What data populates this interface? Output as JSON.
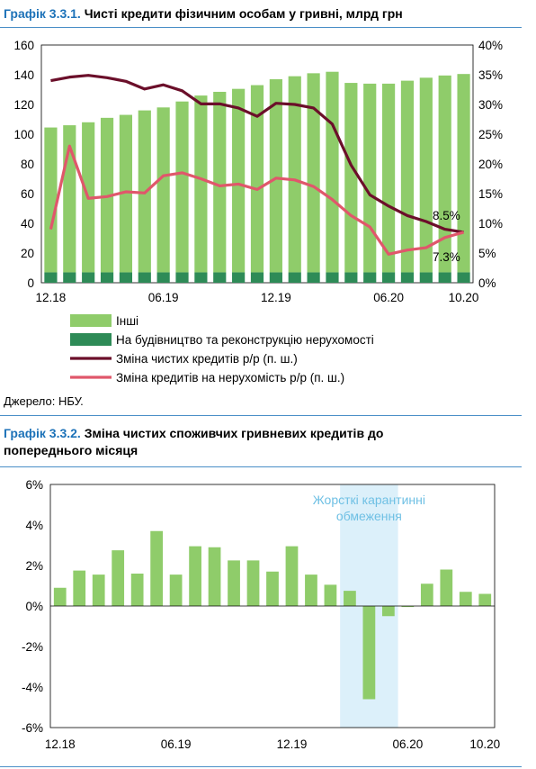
{
  "chart1": {
    "title_num": "Графік 3.3.1.",
    "title_text": "Чисті кредити фізичним особам у гривні, млрд грн",
    "source": "Джерело: НБУ.",
    "colors": {
      "other": "#8fcc6a",
      "construction": "#2e8b57",
      "net_change": "#6b0f2a",
      "mortgage_change": "#e0576b"
    },
    "chart_data": {
      "type": "bar",
      "categories": [
        "12.18",
        "01.19",
        "02.19",
        "03.19",
        "04.19",
        "05.19",
        "06.19",
        "07.19",
        "08.19",
        "09.19",
        "10.19",
        "11.19",
        "12.19",
        "01.20",
        "02.20",
        "03.20",
        "04.20",
        "05.20",
        "06.20",
        "07.20",
        "08.20",
        "09.20",
        "10.20"
      ],
      "x_tick_labels": [
        "12.18",
        "06.19",
        "12.19",
        "06.20",
        "10.20"
      ],
      "y_left_ticks": [
        "0",
        "20",
        "40",
        "60",
        "80",
        "100",
        "120",
        "140",
        "160"
      ],
      "y_right_ticks": [
        "0%",
        "5%",
        "10%",
        "15%",
        "20%",
        "25%",
        "30%",
        "35%",
        "40%"
      ],
      "ylim_left": [
        0,
        160
      ],
      "ylim_right": [
        0,
        40
      ],
      "legend": [
        "Інші",
        "На будівництво та реконструкцію нерухомості",
        "Зміна чистих кредитів р/р (п. ш.)",
        "Зміна кредитів на нерухомість р/р (п. ш.)"
      ],
      "series": [
        {
          "name": "На будівництво та реконструкцію нерухомості",
          "kind": "bar-stack",
          "values": [
            7,
            7,
            7,
            7,
            7,
            7,
            7,
            7,
            7,
            7,
            7,
            7,
            7,
            7,
            7,
            7,
            7,
            7,
            7,
            7,
            7,
            7,
            7
          ]
        },
        {
          "name": "Інші",
          "kind": "bar-stack",
          "values": [
            97.5,
            99,
            101,
            104,
            106,
            109,
            111,
            115,
            119,
            121.5,
            123.5,
            126,
            130,
            132,
            134,
            135,
            127.5,
            127,
            127,
            129,
            131,
            132.5,
            133.5
          ]
        },
        {
          "name": "Зміна чистих кредитів р/р (п. ш.)",
          "kind": "line-right",
          "values": [
            34,
            34.6,
            34.9,
            34.5,
            33.9,
            32.6,
            33.3,
            32.3,
            30.1,
            30.1,
            29.4,
            28,
            30.2,
            30,
            29.4,
            26.7,
            19.8,
            14.8,
            12.9,
            11.3,
            10.3,
            9,
            8.5
          ]
        },
        {
          "name": "Зміна кредитів на нерухомість р/р (п. ш.)",
          "kind": "line-right",
          "values": [
            9,
            23,
            14.2,
            14.5,
            15.3,
            15.1,
            18,
            18.5,
            17.5,
            16.3,
            16.6,
            15.7,
            17.6,
            17.3,
            16.2,
            14,
            11.3,
            9.4,
            4.8,
            5.5,
            5.9,
            7.6,
            8.5
          ]
        }
      ],
      "annotations": [
        "8.5%",
        "7.3%"
      ]
    }
  },
  "chart2": {
    "title_num": "Графік 3.3.2.",
    "title_text_line1": "Зміна чистих споживчих гривневих кредитів до",
    "title_text_line2": "попереднього місяця",
    "band_label_line1": "Жорсткі карантинні",
    "band_label_line2": "обмеження",
    "colors": {
      "bar": "#8fcc6a",
      "band": "#dcf0fa",
      "band_text": "#6fc0e4"
    },
    "chart_data": {
      "type": "bar",
      "categories": [
        "12.18",
        "01.19",
        "02.19",
        "03.19",
        "04.19",
        "05.19",
        "06.19",
        "07.19",
        "08.19",
        "09.19",
        "10.19",
        "11.19",
        "12.19",
        "01.20",
        "02.20",
        "03.20",
        "04.20",
        "05.20",
        "06.20",
        "07.20",
        "08.20",
        "09.20",
        "10.20"
      ],
      "x_tick_labels": [
        "12.18",
        "06.19",
        "12.19",
        "06.20",
        "10.20"
      ],
      "y_ticks": [
        "6%",
        "4%",
        "2%",
        "0%",
        "-2%",
        "-4%",
        "-6%"
      ],
      "ylim": [
        -6,
        6
      ],
      "values": [
        0.9,
        1.75,
        1.55,
        2.75,
        1.6,
        3.7,
        1.55,
        2.95,
        2.9,
        2.25,
        2.25,
        1.7,
        2.95,
        1.55,
        1.05,
        0.75,
        -4.6,
        -0.5,
        -0.05,
        1.1,
        1.8,
        0.7,
        0.6
      ],
      "shaded_region": [
        "03.20",
        "05.20"
      ]
    }
  }
}
